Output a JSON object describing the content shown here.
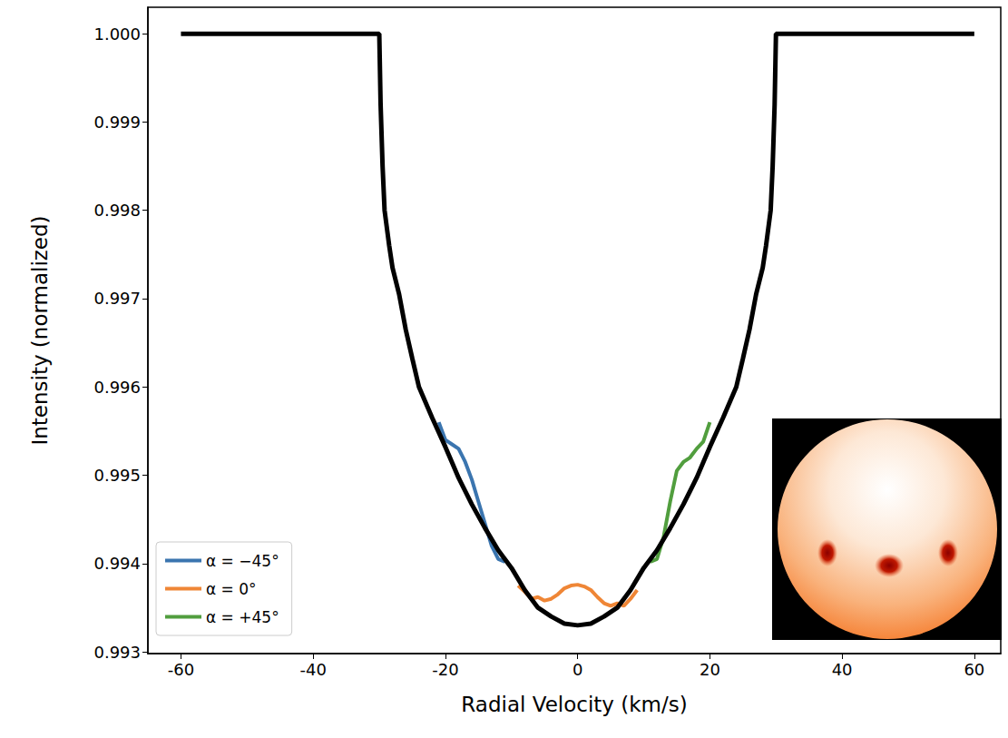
{
  "chart_data": {
    "type": "line",
    "x_label": "Radial Velocity (km/s)",
    "y_label": "Intensity (normalized)",
    "xlim": [
      -65,
      64
    ],
    "xticks": [
      -60,
      -40,
      -20,
      0,
      20,
      40,
      60
    ],
    "ylim": [
      0.99298,
      1.0003
    ],
    "yticks": [
      {
        "value": 0.993,
        "label": "0.993"
      },
      {
        "value": 0.994,
        "label": "0.994"
      },
      {
        "value": 0.995,
        "label": "0.995"
      },
      {
        "value": 0.996,
        "label": "0.996"
      },
      {
        "value": 0.997,
        "label": "0.997"
      },
      {
        "value": 0.998,
        "label": "0.998"
      },
      {
        "value": 0.999,
        "label": "0.999"
      },
      {
        "value": 1,
        "label": "1.000"
      }
    ],
    "grid": false,
    "legend": "lower left",
    "series": [
      {
        "name": "α = −45°",
        "color": "#3b75af",
        "x": [
          -21,
          -20,
          -19,
          -18,
          -17,
          -16,
          -15,
          -14,
          -13,
          -12,
          -11
        ],
        "values": [
          0.9956,
          0.9954,
          0.99535,
          0.9953,
          0.99515,
          0.99495,
          0.9947,
          0.99445,
          0.9942,
          0.99405,
          0.99402
        ]
      },
      {
        "name": "α = 0°",
        "color": "#ef8636",
        "x": [
          -9,
          -8,
          -7,
          -6,
          -5,
          -4,
          -3,
          -2,
          -1,
          0,
          1,
          2,
          3,
          4,
          5,
          6,
          7,
          8,
          9
        ],
        "values": [
          0.99375,
          0.99368,
          0.9936,
          0.99362,
          0.99358,
          0.9936,
          0.99365,
          0.99372,
          0.99375,
          0.99376,
          0.99374,
          0.9937,
          0.99362,
          0.99355,
          0.99352,
          0.99355,
          0.99352,
          0.9936,
          0.9937
        ]
      },
      {
        "name": "α = +45°",
        "color": "#519e3e",
        "x": [
          11,
          12,
          13,
          14,
          15,
          16,
          17,
          18,
          19,
          20
        ],
        "values": [
          0.99402,
          0.99405,
          0.9943,
          0.9947,
          0.99505,
          0.99515,
          0.9952,
          0.9953,
          0.99538,
          0.9956
        ]
      },
      {
        "color": "#000000",
        "x": [
          -60,
          -30,
          -29.8,
          -29.5,
          -29.2,
          -28.5,
          -28,
          -27,
          -26,
          -25,
          -24,
          -22,
          -20,
          -18,
          -16,
          -14,
          -12,
          -10,
          -8,
          -6,
          -4,
          -2,
          0,
          2,
          4,
          6,
          8,
          10,
          12,
          14,
          16,
          18,
          20,
          22,
          24,
          25,
          26,
          27,
          28,
          28.5,
          29.2,
          29.5,
          29.8,
          30,
          60
        ],
        "values": [
          1,
          1,
          0.9992,
          0.9985,
          0.998,
          0.9976,
          0.99735,
          0.99705,
          0.99665,
          0.99632,
          0.996,
          0.99565,
          0.99532,
          0.99497,
          0.99467,
          0.9944,
          0.99415,
          0.99395,
          0.9937,
          0.9935,
          0.9934,
          0.99332,
          0.9933,
          0.99332,
          0.9934,
          0.9935,
          0.9937,
          0.99395,
          0.99415,
          0.9944,
          0.99467,
          0.99497,
          0.99532,
          0.99565,
          0.996,
          0.99632,
          0.99665,
          0.99705,
          0.99735,
          0.9976,
          0.998,
          0.9985,
          0.9992,
          1,
          1
        ]
      }
    ]
  }
}
